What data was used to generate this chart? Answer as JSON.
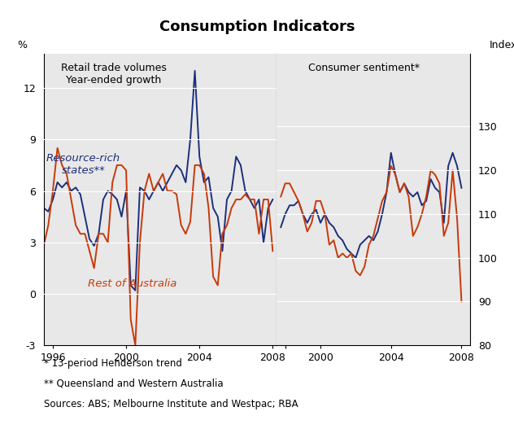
{
  "title": "Consumption Indicators",
  "left_panel_label": "Retail trade volumes\nYear-ended growth",
  "right_panel_label": "Consumer sentiment*",
  "left_ylabel": "%",
  "right_ylabel": "Index",
  "left_ylim": [
    -3,
    14.0
  ],
  "right_ylim": [
    80,
    146.67
  ],
  "left_yticks": [
    -3,
    0,
    3,
    6,
    9,
    12
  ],
  "right_yticks": [
    80,
    90,
    100,
    110,
    120,
    130
  ],
  "color_blue": "#1c2f7c",
  "color_red": "#c8390a",
  "label_blue": "Resource-rich\nstates**",
  "label_red": "Rest of Australia",
  "footnote1": "* 13-period Henderson trend",
  "footnote2": "** Queensland and Western Australia",
  "footnote3": "Sources: ABS; Melbourne Institute and Westpac; RBA",
  "bg_color": "#e8e8e8",
  "left_blue_x": [
    1995.5,
    1995.75,
    1996.0,
    1996.25,
    1996.5,
    1996.75,
    1997.0,
    1997.25,
    1997.5,
    1997.75,
    1998.0,
    1998.25,
    1998.5,
    1998.75,
    1999.0,
    1999.25,
    1999.5,
    1999.75,
    2000.0,
    2000.25,
    2000.5,
    2000.75,
    2001.0,
    2001.25,
    2001.5,
    2001.75,
    2002.0,
    2002.25,
    2002.5,
    2002.75,
    2003.0,
    2003.25,
    2003.5,
    2003.75,
    2004.0,
    2004.25,
    2004.5,
    2004.75,
    2005.0,
    2005.25,
    2005.5,
    2005.75,
    2006.0,
    2006.25,
    2006.5,
    2006.75,
    2007.0,
    2007.25,
    2007.5,
    2007.75,
    2008.0
  ],
  "left_blue_y": [
    5.0,
    4.8,
    5.5,
    6.5,
    6.2,
    6.5,
    6.0,
    6.2,
    5.8,
    4.5,
    3.2,
    2.8,
    3.5,
    5.5,
    6.0,
    5.8,
    5.5,
    4.5,
    6.0,
    0.5,
    0.2,
    6.2,
    6.0,
    5.5,
    6.0,
    6.5,
    6.0,
    6.5,
    7.0,
    7.5,
    7.2,
    6.5,
    9.0,
    13.0,
    8.0,
    6.5,
    6.8,
    5.0,
    4.5,
    2.5,
    5.5,
    6.0,
    8.0,
    7.5,
    6.0,
    5.5,
    5.0,
    5.5,
    3.0,
    5.0,
    5.5
  ],
  "left_red_x": [
    1995.5,
    1995.75,
    1996.0,
    1996.25,
    1996.5,
    1996.75,
    1997.0,
    1997.25,
    1997.5,
    1997.75,
    1998.0,
    1998.25,
    1998.5,
    1998.75,
    1999.0,
    1999.25,
    1999.5,
    1999.75,
    2000.0,
    2000.25,
    2000.5,
    2000.75,
    2001.0,
    2001.25,
    2001.5,
    2001.75,
    2002.0,
    2002.25,
    2002.5,
    2002.75,
    2003.0,
    2003.25,
    2003.5,
    2003.75,
    2004.0,
    2004.25,
    2004.5,
    2004.75,
    2005.0,
    2005.25,
    2005.5,
    2005.75,
    2006.0,
    2006.25,
    2006.5,
    2006.75,
    2007.0,
    2007.25,
    2007.5,
    2007.75,
    2008.0
  ],
  "left_red_y": [
    2.8,
    4.0,
    6.0,
    8.5,
    7.5,
    7.0,
    5.5,
    4.0,
    3.5,
    3.5,
    2.5,
    1.5,
    3.5,
    3.5,
    3.0,
    6.5,
    7.5,
    7.5,
    7.2,
    -1.5,
    -3.0,
    3.0,
    6.0,
    7.0,
    6.0,
    6.5,
    7.0,
    6.0,
    6.0,
    5.8,
    4.0,
    3.5,
    4.2,
    7.5,
    7.5,
    7.0,
    5.0,
    1.0,
    0.5,
    3.5,
    4.0,
    5.0,
    5.5,
    5.5,
    5.8,
    5.5,
    5.5,
    3.5,
    5.5,
    5.5,
    2.5
  ],
  "right_blue_x": [
    1997.75,
    1998.0,
    1998.25,
    1998.5,
    1998.75,
    1999.0,
    1999.25,
    1999.5,
    1999.75,
    2000.0,
    2000.25,
    2000.5,
    2000.75,
    2001.0,
    2001.25,
    2001.5,
    2001.75,
    2002.0,
    2002.25,
    2002.5,
    2002.75,
    2003.0,
    2003.25,
    2003.5,
    2003.75,
    2004.0,
    2004.25,
    2004.5,
    2004.75,
    2005.0,
    2005.25,
    2005.5,
    2005.75,
    2006.0,
    2006.25,
    2006.5,
    2006.75,
    2007.0,
    2007.25,
    2007.5,
    2007.75,
    2008.0
  ],
  "right_blue_y": [
    107,
    110,
    112,
    112,
    113,
    110,
    108,
    110,
    111,
    108,
    110,
    108,
    107,
    105,
    104,
    102,
    101,
    100,
    103,
    104,
    105,
    104,
    106,
    110,
    115,
    124,
    119,
    115,
    117,
    115,
    114,
    115,
    112,
    113,
    118,
    116,
    115,
    108,
    121,
    124,
    121,
    116
  ],
  "right_red_x": [
    1997.75,
    1998.0,
    1998.25,
    1998.5,
    1998.75,
    1999.0,
    1999.25,
    1999.5,
    1999.75,
    2000.0,
    2000.25,
    2000.5,
    2000.75,
    2001.0,
    2001.25,
    2001.5,
    2001.75,
    2002.0,
    2002.25,
    2002.5,
    2002.75,
    2003.0,
    2003.25,
    2003.5,
    2003.75,
    2004.0,
    2004.25,
    2004.5,
    2004.75,
    2005.0,
    2005.25,
    2005.5,
    2005.75,
    2006.0,
    2006.25,
    2006.5,
    2006.75,
    2007.0,
    2007.25,
    2007.5,
    2007.75,
    2008.0
  ],
  "right_red_y": [
    114,
    117,
    117,
    115,
    113,
    110,
    106,
    108,
    113,
    113,
    110,
    103,
    104,
    100,
    101,
    100,
    101,
    97,
    96,
    98,
    103,
    105,
    109,
    113,
    115,
    121,
    119,
    115,
    117,
    114,
    105,
    107,
    110,
    114,
    120,
    119,
    117,
    105,
    108,
    120,
    109,
    90
  ]
}
